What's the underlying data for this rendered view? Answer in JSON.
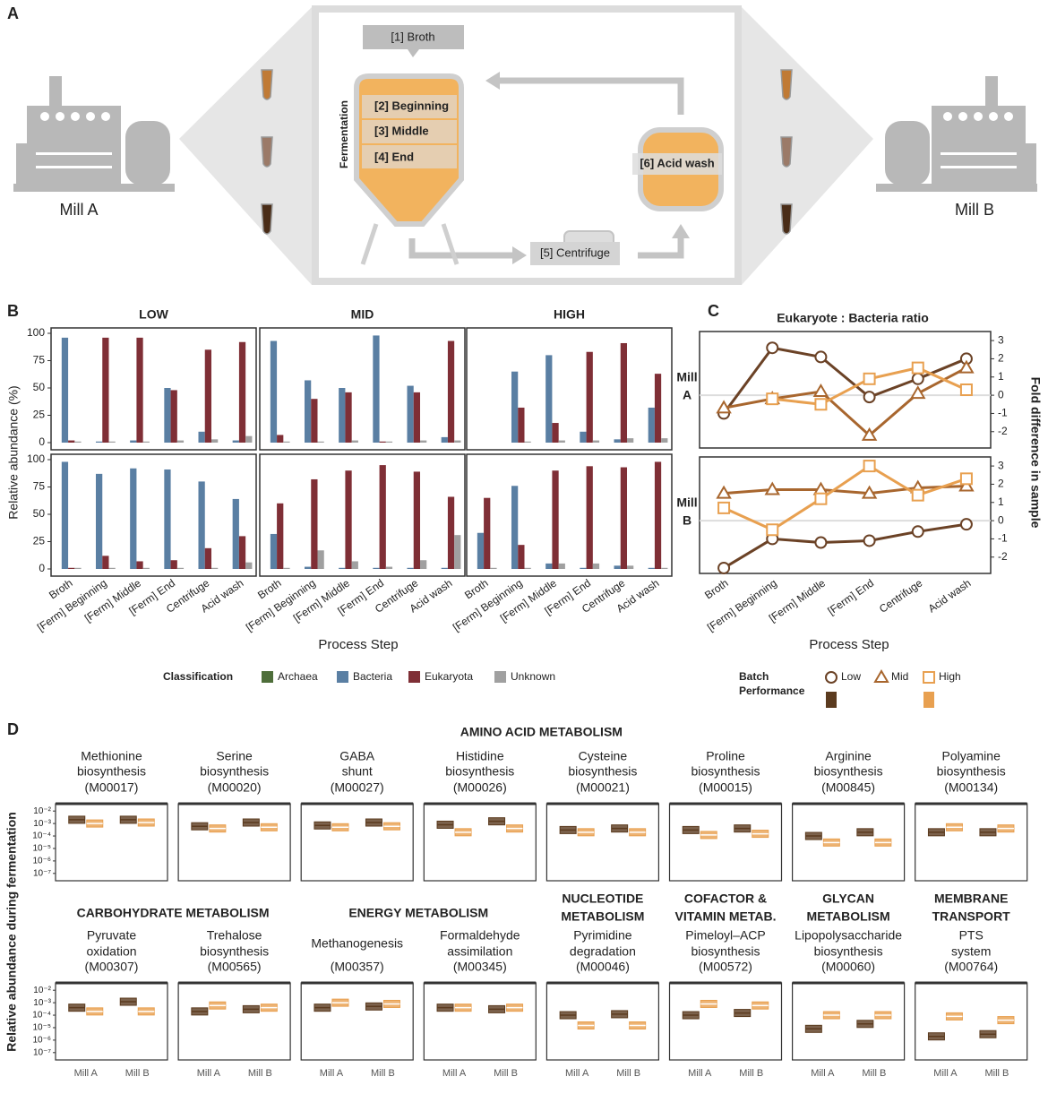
{
  "panel_a": {
    "letter": "A",
    "broth": "[1] Broth",
    "beginning": "[2] Beginning",
    "middle": "[3] Middle",
    "end": "[4] End",
    "centrifuge": "[5] Centrifuge",
    "acid_wash": "[6] Acid wash",
    "side_label": "Fermentation",
    "mill_a": "Mill A",
    "mill_b": "Mill B"
  },
  "chart_data": [
    {
      "type": "bar",
      "letter": "B",
      "ylabel": "Relative abundance (%)",
      "xlabel": "Process Step",
      "categories": [
        "Broth",
        "[Ferm] Beginning",
        "[Ferm] Middle",
        "[Ferm] End",
        "Centrifuge",
        "Acid wash"
      ],
      "columns": [
        "LOW",
        "MID",
        "HIGH"
      ],
      "ylim": [
        0,
        100
      ],
      "yticks": [
        0,
        25,
        50,
        75,
        100
      ],
      "legend_title": "Classification",
      "series": [
        {
          "name": "Archaea",
          "color": "#4e6e3a"
        },
        {
          "name": "Bacteria",
          "color": "#5a7fa3"
        },
        {
          "name": "Eukaryota",
          "color": "#7f2f36"
        },
        {
          "name": "Unknown",
          "color": "#a0a0a0"
        }
      ],
      "values": [
        [
          [
            [
              0,
              0,
              0,
              0,
              0,
              0
            ],
            [
              96,
              1,
              2,
              50,
              10,
              2
            ],
            [
              2,
              96,
              96,
              48,
              85,
              92
            ],
            [
              1,
              1,
              1,
              2,
              3,
              6
            ]
          ],
          [
            [
              0,
              0,
              0,
              0,
              0,
              0
            ],
            [
              93,
              57,
              50,
              98,
              52,
              5
            ],
            [
              7,
              40,
              46,
              1,
              46,
              93
            ],
            [
              1,
              1,
              2,
              1,
              2,
              2
            ]
          ],
          [
            [
              0,
              0,
              0,
              0,
              0,
              0
            ],
            [
              0,
              65,
              80,
              10,
              3,
              32
            ],
            [
              0,
              32,
              18,
              83,
              91,
              63
            ],
            [
              0,
              1,
              2,
              2,
              4,
              4
            ]
          ]
        ],
        [
          [
            [
              0,
              0,
              0,
              0,
              0,
              0
            ],
            [
              98,
              87,
              92,
              91,
              80,
              64
            ],
            [
              1,
              12,
              7,
              8,
              19,
              30
            ],
            [
              1,
              1,
              1,
              1,
              1,
              6
            ]
          ],
          [
            [
              0,
              0,
              0,
              0,
              0,
              0
            ],
            [
              32,
              2,
              1,
              1,
              1,
              1
            ],
            [
              60,
              82,
              90,
              95,
              89,
              66
            ],
            [
              1,
              17,
              7,
              2,
              8,
              31
            ]
          ],
          [
            [
              0,
              0,
              0,
              0,
              0,
              0
            ],
            [
              33,
              76,
              5,
              1,
              3,
              1
            ],
            [
              65,
              22,
              90,
              94,
              93,
              98
            ],
            [
              1,
              1,
              5,
              5,
              3,
              1
            ]
          ]
        ]
      ]
    },
    {
      "type": "line",
      "letter": "C",
      "title": "Eukaryote : Bacteria ratio",
      "ylabel": "Fold difference in sample",
      "xlabel": "Process Step",
      "categories": [
        "Broth",
        "[Ferm] Beginning",
        "[Ferm] Middle",
        "[Ferm] End",
        "Centrifuge",
        "Acid wash"
      ],
      "rows": [
        [
          "Mill",
          "A"
        ],
        [
          "Mill",
          "B"
        ]
      ],
      "ylim": [
        -2.7,
        3.3
      ],
      "yticks": [
        -2,
        -1,
        0,
        1,
        2,
        3
      ],
      "legend_title": [
        "Batch",
        "Performance"
      ],
      "series": [
        {
          "name": "Low",
          "color": "#6b4226",
          "marker": "circle",
          "values": [
            [
              -1,
              2.6,
              2.1,
              -0.1,
              0.9,
              2.0
            ],
            [
              -2.6,
              -1,
              -1.2,
              -1.1,
              -0.6,
              -0.2
            ]
          ]
        },
        {
          "name": "Mid",
          "color": "#a8662e",
          "marker": "triangle",
          "values": [
            [
              -0.7,
              -0.2,
              0.2,
              -2.2,
              0.1,
              1.5
            ],
            [
              1.5,
              1.7,
              1.7,
              1.5,
              1.8,
              1.9
            ]
          ]
        },
        {
          "name": "High",
          "color": "#e8a050",
          "marker": "square",
          "values": [
            [
              null,
              -0.2,
              -0.5,
              0.9,
              1.5,
              0.3
            ],
            [
              0.7,
              -0.5,
              1.2,
              3.0,
              1.4,
              2.3
            ]
          ]
        }
      ]
    },
    {
      "type": "box",
      "letter": "D",
      "ylabel": "Relative abundance during fermentation",
      "x_categories": [
        "Mill A",
        "Mill B"
      ],
      "log_y": true,
      "ylim": [
        5e-08,
        0.02
      ],
      "yticks": [
        {
          "value": 1e-07,
          "label": "10⁻⁷"
        },
        {
          "value": 1e-06,
          "label": "10⁻⁶"
        },
        {
          "value": 1e-05,
          "label": "10⁻⁵"
        },
        {
          "value": 0.0001,
          "label": "10⁻⁴"
        },
        {
          "value": 0.001,
          "label": "10⁻³"
        },
        {
          "value": 0.01,
          "label": "10⁻²"
        }
      ],
      "colors": [
        "#5b3b1f",
        "#e8a050"
      ],
      "groups": [
        {
          "title": [
            "AMINO ACID METABOLISM"
          ],
          "modules": [
            {
              "lines": [
                "Methionine",
                "biosynthesis",
                "(M00017)"
              ],
              "values": [
                0.002,
                0.001,
                0.002,
                0.0012
              ]
            },
            {
              "lines": [
                "Serine",
                "biosynthesis",
                "(M00020)"
              ],
              "values": [
                0.0006,
                0.0004,
                0.0012,
                0.0005
              ]
            },
            {
              "lines": [
                "GABA",
                "shunt",
                "(M00027)"
              ],
              "values": [
                0.0007,
                0.0005,
                0.0012,
                0.0006
              ]
            },
            {
              "lines": [
                "Histidine",
                "biosynthesis",
                "(M00026)"
              ],
              "values": [
                0.0008,
                0.0002,
                0.0015,
                0.0004
              ]
            },
            {
              "lines": [
                "Cysteine",
                "biosynthesis",
                "(M00021)"
              ],
              "values": [
                0.0003,
                0.0002,
                0.0004,
                0.0002
              ]
            },
            {
              "lines": [
                "Proline",
                "biosynthesis",
                "(M00015)"
              ],
              "values": [
                0.0003,
                0.00012,
                0.0004,
                0.00015
              ]
            },
            {
              "lines": [
                "Arginine",
                "biosynthesis",
                "(M00845)"
              ],
              "values": [
                0.0001,
                3e-05,
                0.0002,
                3e-05
              ]
            },
            {
              "lines": [
                "Polyamine",
                "biosynthesis",
                "(M00134)"
              ],
              "values": [
                0.0002,
                0.0005,
                0.0002,
                0.0004
              ]
            }
          ]
        },
        {
          "title": [
            "CARBOHYDRATE METABOLISM"
          ],
          "modules": [
            {
              "lines": [
                "Pyruvate",
                "oxidation",
                "(M00307)"
              ],
              "values": [
                0.0004,
                0.0002,
                0.0012,
                0.0002
              ]
            },
            {
              "lines": [
                "Trehalose",
                "biosynthesis",
                "(M00565)"
              ],
              "values": [
                0.0002,
                0.0006,
                0.0003,
                0.0004
              ]
            }
          ]
        },
        {
          "title": [
            "ENERGY METABOLISM"
          ],
          "modules": [
            {
              "lines": [
                "Methanogenesis",
                "(M00357)"
              ],
              "values": [
                0.0004,
                0.001,
                0.0005,
                0.0008
              ]
            },
            {
              "lines": [
                "Formaldehyde",
                "assimilation",
                "(M00345)"
              ],
              "values": [
                0.0004,
                0.0004,
                0.0003,
                0.0004
              ]
            }
          ]
        },
        {
          "title": [
            "NUCLEOTIDE",
            "METABOLISM"
          ],
          "modules": [
            {
              "lines": [
                "Pyrimidine",
                "degradation",
                "(M00046)"
              ],
              "values": [
                0.0001,
                1.5e-05,
                0.00012,
                1.5e-05
              ]
            }
          ]
        },
        {
          "title": [
            "COFACTOR &",
            "VITAMIN METAB."
          ],
          "modules": [
            {
              "lines": [
                "Pimeloyl–ACP",
                "biosynthesis",
                "(M00572)"
              ],
              "values": [
                0.0001,
                0.0008,
                0.00015,
                0.0006
              ]
            }
          ]
        },
        {
          "title": [
            "GLYCAN",
            "METABOLISM"
          ],
          "modules": [
            {
              "lines": [
                "Lipopolysaccharide",
                "biosynthesis",
                "(M00060)"
              ],
              "values": [
                8e-06,
                0.0001,
                2e-05,
                0.0001
              ]
            }
          ]
        },
        {
          "title": [
            "MEMBRANE",
            "TRANSPORT"
          ],
          "modules": [
            {
              "lines": [
                "PTS",
                "system",
                "(M00764)"
              ],
              "values": [
                2e-06,
                8e-05,
                3e-06,
                4e-05
              ]
            }
          ]
        }
      ]
    }
  ]
}
